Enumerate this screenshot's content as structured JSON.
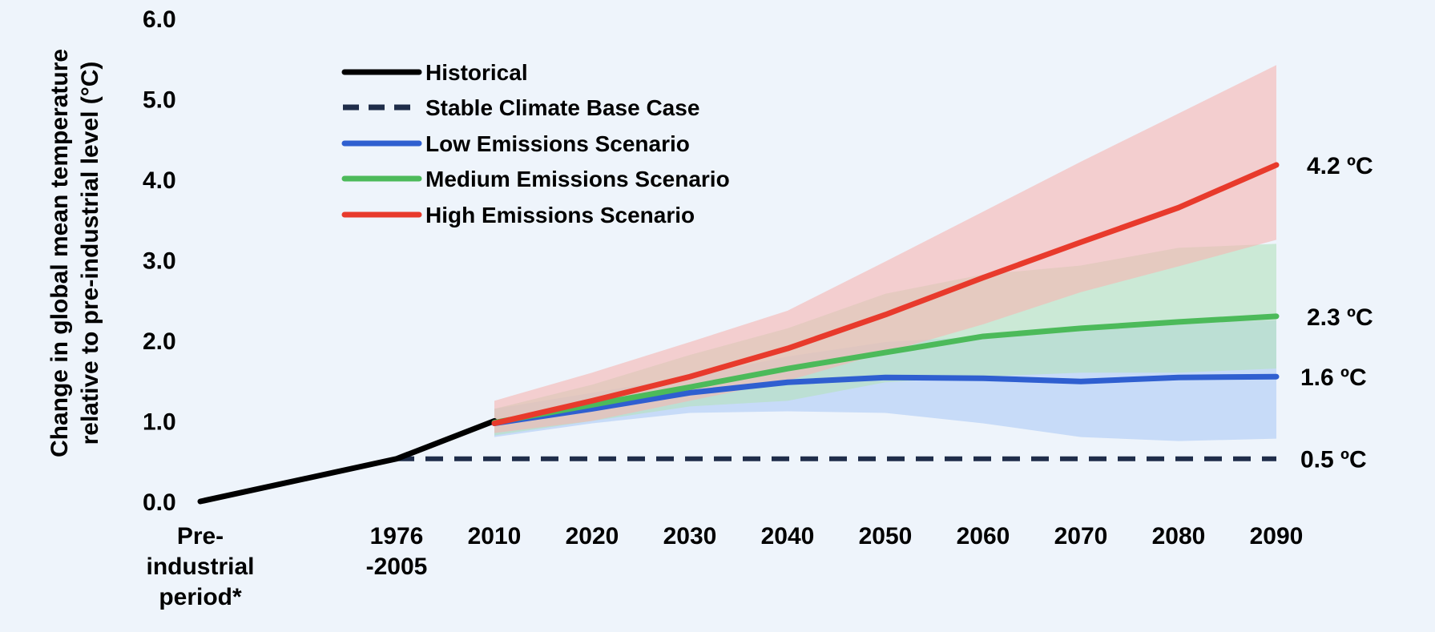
{
  "chart_data": {
    "type": "line",
    "title": "",
    "ylabel_lines": [
      "Change in global mean temperature",
      "relative to pre-industrial level (°C)"
    ],
    "ylim": [
      0,
      6
    ],
    "yticks": [
      "0.0",
      "1.0",
      "2.0",
      "3.0",
      "4.0",
      "5.0",
      "6.0"
    ],
    "yticks_values": [
      0,
      1,
      2,
      3,
      4,
      5,
      6
    ],
    "grid": false,
    "legend_position": "top-left",
    "categories": [
      {
        "label_lines": [
          "Pre-",
          "industrial",
          "period*"
        ]
      },
      {
        "label_lines": [
          "1976",
          "-2005"
        ]
      },
      {
        "label_lines": [
          "2010"
        ]
      },
      {
        "label_lines": [
          "2020"
        ]
      },
      {
        "label_lines": [
          "2030"
        ]
      },
      {
        "label_lines": [
          "2040"
        ]
      },
      {
        "label_lines": [
          "2050"
        ]
      },
      {
        "label_lines": [
          "2060"
        ]
      },
      {
        "label_lines": [
          "2070"
        ]
      },
      {
        "label_lines": [
          "2080"
        ]
      },
      {
        "label_lines": [
          "2090"
        ]
      }
    ],
    "series": [
      {
        "name": "Historical",
        "style": "solid",
        "color": "#000000",
        "points": [
          [
            0,
            0.0
          ],
          [
            1,
            0.53
          ],
          [
            2,
            1.0
          ]
        ]
      },
      {
        "name": "Stable Climate Base Case",
        "style": "dashed",
        "color": "#1f2d4a",
        "points": [
          [
            1,
            0.53
          ],
          [
            2,
            0.53
          ],
          [
            3,
            0.53
          ],
          [
            4,
            0.53
          ],
          [
            5,
            0.53
          ],
          [
            6,
            0.53
          ],
          [
            7,
            0.53
          ],
          [
            8,
            0.53
          ],
          [
            9,
            0.53
          ],
          [
            10,
            0.53
          ]
        ],
        "end_label": "0.5 ºC"
      },
      {
        "name": "Low Emissions Scenario",
        "style": "solid",
        "color": "#2f5fd0",
        "points": [
          [
            2,
            0.97
          ],
          [
            3,
            1.15
          ],
          [
            4,
            1.35
          ],
          [
            5,
            1.48
          ],
          [
            6,
            1.54
          ],
          [
            7,
            1.53
          ],
          [
            8,
            1.49
          ],
          [
            9,
            1.54
          ],
          [
            10,
            1.55
          ]
        ],
        "end_label": "1.6 ºC",
        "band": {
          "color": "#aecbf5",
          "lower": [
            0.8,
            0.97,
            1.1,
            1.12,
            1.1,
            0.97,
            0.8,
            0.75,
            0.78
          ],
          "upper": [
            1.15,
            1.35,
            1.55,
            1.8,
            1.98,
            2.05,
            2.15,
            2.22,
            2.25
          ]
        }
      },
      {
        "name": "Medium Emissions Scenario",
        "style": "solid",
        "color": "#4cba5a",
        "points": [
          [
            2,
            0.98
          ],
          [
            3,
            1.2
          ],
          [
            4,
            1.42
          ],
          [
            5,
            1.65
          ],
          [
            6,
            1.85
          ],
          [
            7,
            2.05
          ],
          [
            8,
            2.15
          ],
          [
            9,
            2.23
          ],
          [
            10,
            2.3
          ]
        ],
        "end_label": "2.3 ºC",
        "band": {
          "color": "#b5e2bf",
          "lower": [
            0.82,
            1.0,
            1.18,
            1.25,
            1.48,
            1.55,
            1.6,
            1.6,
            1.65
          ],
          "upper": [
            1.15,
            1.45,
            1.82,
            2.15,
            2.58,
            2.82,
            2.93,
            3.15,
            3.2
          ]
        }
      },
      {
        "name": "High Emissions Scenario",
        "style": "solid",
        "color": "#e83a2c",
        "points": [
          [
            2,
            0.97
          ],
          [
            3,
            1.25
          ],
          [
            4,
            1.55
          ],
          [
            5,
            1.9
          ],
          [
            6,
            2.32
          ],
          [
            7,
            2.78
          ],
          [
            8,
            3.22
          ],
          [
            9,
            3.65
          ],
          [
            10,
            4.18
          ]
        ],
        "end_label": "4.2 ºC",
        "band": {
          "color": "#f5b6b3",
          "lower": [
            0.85,
            1.0,
            1.25,
            1.5,
            1.85,
            2.2,
            2.6,
            2.92,
            3.25
          ],
          "upper": [
            1.25,
            1.6,
            1.98,
            2.37,
            2.98,
            3.6,
            4.22,
            4.82,
            5.42
          ]
        }
      }
    ]
  }
}
